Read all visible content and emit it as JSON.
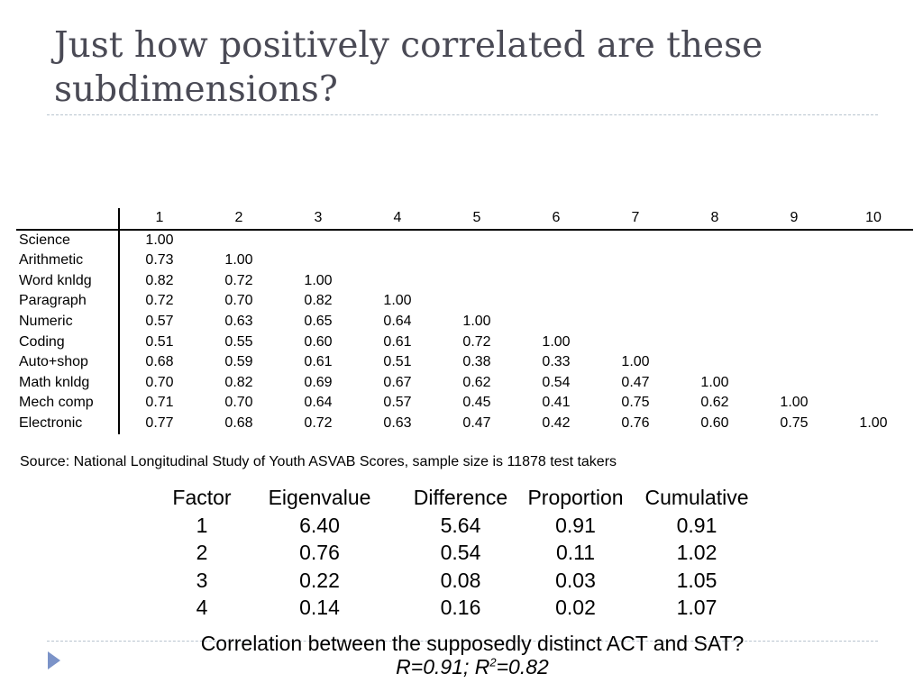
{
  "slide": {
    "title": "Just how positively correlated are these subdimensions?"
  },
  "correlation_table": {
    "column_headers": [
      "1",
      "2",
      "3",
      "4",
      "5",
      "6",
      "7",
      "8",
      "9",
      "10"
    ],
    "rows": [
      {
        "label": "Science",
        "values": [
          "1.00"
        ]
      },
      {
        "label": "Arithmetic",
        "values": [
          "0.73",
          "1.00"
        ]
      },
      {
        "label": "Word knldg",
        "values": [
          "0.82",
          "0.72",
          "1.00"
        ]
      },
      {
        "label": "Paragraph",
        "values": [
          "0.72",
          "0.70",
          "0.82",
          "1.00"
        ]
      },
      {
        "label": "Numeric",
        "values": [
          "0.57",
          "0.63",
          "0.65",
          "0.64",
          "1.00"
        ]
      },
      {
        "label": "Coding",
        "values": [
          "0.51",
          "0.55",
          "0.60",
          "0.61",
          "0.72",
          "1.00"
        ]
      },
      {
        "label": "Auto+shop",
        "values": [
          "0.68",
          "0.59",
          "0.61",
          "0.51",
          "0.38",
          "0.33",
          "1.00"
        ]
      },
      {
        "label": "Math knldg",
        "values": [
          "0.70",
          "0.82",
          "0.69",
          "0.67",
          "0.62",
          "0.54",
          "0.47",
          "1.00"
        ]
      },
      {
        "label": "Mech comp",
        "values": [
          "0.71",
          "0.70",
          "0.64",
          "0.57",
          "0.45",
          "0.41",
          "0.75",
          "0.62",
          "1.00"
        ]
      },
      {
        "label": "Electronic",
        "values": [
          "0.77",
          "0.68",
          "0.72",
          "0.63",
          "0.47",
          "0.42",
          "0.76",
          "0.60",
          "0.75",
          "1.00"
        ]
      }
    ],
    "source": "Source: National Longitudinal Study of Youth ASVAB Scores, sample size is 11878 test takers"
  },
  "factor_table": {
    "headers": [
      "Factor",
      "Eigenvalue",
      "Difference",
      "Proportion",
      "Cumulative"
    ],
    "rows": [
      [
        "1",
        "6.40",
        "5.64",
        "0.91",
        "0.91"
      ],
      [
        "2",
        "0.76",
        "0.54",
        "0.11",
        "1.02"
      ],
      [
        "3",
        "0.22",
        "0.08",
        "0.03",
        "1.05"
      ],
      [
        "4",
        "0.14",
        "0.16",
        "0.02",
        "1.07"
      ]
    ]
  },
  "footer": {
    "question": "Correlation between the supposedly distinct ACT and SAT?",
    "result_r": "R=0.91; R",
    "result_sup": "2",
    "result_r2": "=0.82"
  },
  "colors": {
    "title": "#4a4a55",
    "rule": "#b8c4cf",
    "nav_arrow": "#7b93c8"
  },
  "icons": {
    "nav": "triangle-right"
  }
}
